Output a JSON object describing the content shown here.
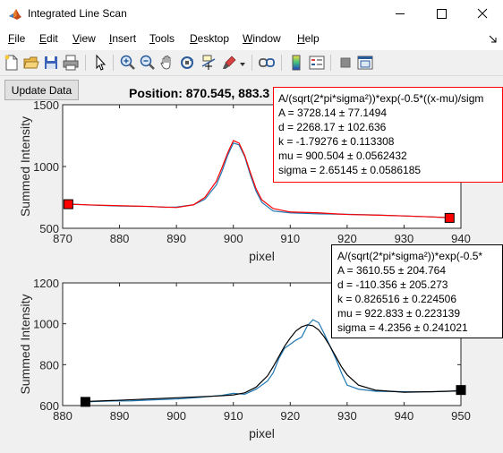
{
  "window": {
    "title": "Integrated Line Scan"
  },
  "menu": [
    {
      "pre": "",
      "u": "F",
      "post": "ile"
    },
    {
      "pre": "",
      "u": "E",
      "post": "dit"
    },
    {
      "pre": "",
      "u": "V",
      "post": "iew"
    },
    {
      "pre": "",
      "u": "I",
      "post": "nsert"
    },
    {
      "pre": "",
      "u": "T",
      "post": "ools"
    },
    {
      "pre": "",
      "u": "D",
      "post": "esktop"
    },
    {
      "pre": "",
      "u": "W",
      "post": "indow"
    },
    {
      "pre": "",
      "u": "H",
      "post": "elp"
    }
  ],
  "controls": {
    "update_label": "Update Data"
  },
  "status": {
    "position_text": "Position: 870.545, 883.3"
  },
  "colors": {
    "data_line": "#1f77b4",
    "fit_top": "#ff0000",
    "fit_bottom": "#000000",
    "marker_top": "#ff0000",
    "marker_bottom": "#000000",
    "fitbox_top_border": "#ff0000",
    "fitbox_bottom_border": "#000000"
  },
  "fit_top": {
    "formula": "A/(sqrt(2*pi*sigma²))*exp(-0.5*((x-mu)/sigm",
    "lines": [
      "A = 3728.14 ± 77.1494",
      "d = 2268.17 ± 102.636",
      "k = -1.79276 ± 0.113308",
      "mu = 900.504 ± 0.0562432",
      "sigma = 2.65145 ± 0.0586185"
    ]
  },
  "fit_bottom": {
    "formula": "A/(sqrt(2*pi*sigma²))*exp(-0.5*",
    "lines": [
      "A = 3610.55 ± 204.764",
      "d = -110.356 ± 205.273",
      "k = 0.826516 ± 0.224506",
      "mu = 922.833 ± 0.223139",
      "sigma = 4.2356 ± 0.241021"
    ]
  },
  "chart_data": [
    {
      "type": "line",
      "xlabel": "pixel",
      "ylabel": "Summed Intensity",
      "xlim": [
        870,
        940
      ],
      "ylim": [
        500,
        1500
      ],
      "xticks": [
        870,
        880,
        890,
        900,
        910,
        920,
        930,
        940
      ],
      "yticks": [
        500,
        1000,
        1500
      ],
      "series": [
        {
          "x": [
            871,
            875,
            880,
            885,
            888,
            890,
            893,
            895,
            897,
            898,
            899,
            900,
            901,
            902,
            903,
            904,
            905,
            907,
            910,
            915,
            920,
            925,
            930,
            935,
            938
          ],
          "y": [
            698,
            688,
            680,
            677,
            670,
            672,
            690,
            735,
            850,
            960,
            1090,
            1190,
            1175,
            1080,
            930,
            800,
            710,
            640,
            625,
            617,
            613,
            608,
            600,
            592,
            585
          ]
        },
        {
          "x": [
            871,
            875,
            880,
            885,
            890,
            893,
            895,
            897,
            898,
            899,
            900,
            901,
            902,
            903,
            904,
            905,
            907,
            910,
            915,
            920,
            925,
            930,
            935,
            938
          ],
          "y": [
            695,
            689,
            683,
            677,
            668,
            690,
            750,
            880,
            990,
            1110,
            1210,
            1190,
            1090,
            950,
            820,
            730,
            660,
            632,
            625,
            612,
            607,
            600,
            592,
            586
          ]
        }
      ],
      "markers": [
        {
          "x": 871,
          "y": 695
        },
        {
          "x": 938,
          "y": 584
        }
      ]
    },
    {
      "type": "line",
      "xlabel": "pixel",
      "ylabel": "Summed Intensity",
      "xlim": [
        880,
        950
      ],
      "ylim": [
        600,
        1200
      ],
      "xticks": [
        880,
        890,
        900,
        910,
        920,
        930,
        940,
        950
      ],
      "yticks": [
        600,
        800,
        1000,
        1200
      ],
      "series": [
        {
          "x": [
            884,
            888,
            892,
            896,
            900,
            904,
            908,
            910,
            912,
            914,
            916,
            917,
            918,
            919,
            920,
            921,
            922,
            923,
            924,
            925,
            926,
            927,
            928,
            929,
            930,
            932,
            935,
            940,
            945,
            948,
            950
          ],
          "y": [
            618,
            622,
            623,
            628,
            632,
            640,
            650,
            660,
            655,
            680,
            720,
            760,
            830,
            880,
            900,
            920,
            935,
            990,
            1020,
            1005,
            950,
            890,
            830,
            760,
            700,
            680,
            670,
            668,
            667,
            670,
            674
          ]
        },
        {
          "x": [
            884,
            890,
            895,
            900,
            905,
            908,
            910,
            912,
            914,
            916,
            917,
            918,
            919,
            920,
            921,
            922,
            923,
            924,
            925,
            926,
            927,
            928,
            929,
            930,
            932,
            935,
            940,
            945,
            950
          ],
          "y": [
            620,
            626,
            632,
            638,
            644,
            648,
            652,
            662,
            690,
            745,
            790,
            840,
            890,
            930,
            965,
            985,
            995,
            990,
            970,
            935,
            890,
            840,
            790,
            750,
            700,
            675,
            665,
            668,
            672
          ]
        }
      ],
      "markers": [
        {
          "x": 884,
          "y": 618
        },
        {
          "x": 950,
          "y": 676
        }
      ]
    }
  ]
}
